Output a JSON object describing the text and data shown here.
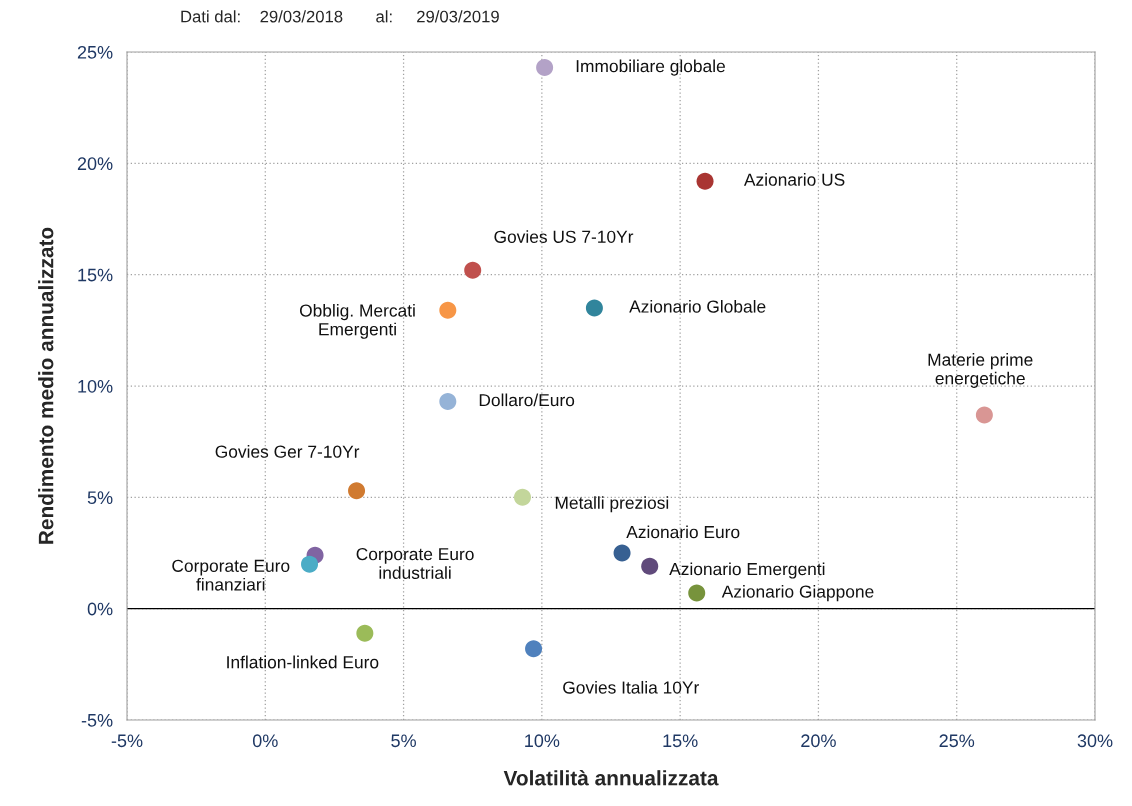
{
  "chart_data": {
    "type": "scatter",
    "xlabel": "Volatilità annualizzata",
    "ylabel": "Rendimento medio annualizzato",
    "annotations": [
      "Dati dal:    29/03/2018       al:     29/03/2019"
    ],
    "xlim": [
      -5,
      30
    ],
    "ylim": [
      -5,
      25
    ],
    "xticks": [
      {
        "value": -5,
        "label": "-5%"
      },
      {
        "value": 0,
        "label": "0%"
      },
      {
        "value": 5,
        "label": "5%"
      },
      {
        "value": 10,
        "label": "10%"
      },
      {
        "value": 15,
        "label": "15%"
      },
      {
        "value": 20,
        "label": "20%"
      },
      {
        "value": 25,
        "label": "25%"
      },
      {
        "value": 30,
        "label": "30%"
      }
    ],
    "yticks": [
      {
        "value": -5,
        "label": "-5%"
      },
      {
        "value": 0,
        "label": "0%"
      },
      {
        "value": 5,
        "label": "5%"
      },
      {
        "value": 10,
        "label": "10%"
      },
      {
        "value": 15,
        "label": "15%"
      },
      {
        "value": 20,
        "label": "20%"
      },
      {
        "value": 25,
        "label": "25%"
      }
    ],
    "grid": true,
    "marker": "circle",
    "ref_lines": [
      {
        "axis": "y",
        "value": 0,
        "color": "#000000"
      }
    ],
    "series": [
      {
        "name": "Immobiliare globale",
        "color": "#b3a2c7",
        "x": [
          10.1
        ],
        "values": [
          24.3
        ]
      },
      {
        "name": "Azionario US",
        "color": "#a93532",
        "x": [
          15.9
        ],
        "values": [
          19.2
        ]
      },
      {
        "name": "Govies US 7-10Yr",
        "color": "#c0504d",
        "x": [
          7.5
        ],
        "values": [
          15.2
        ]
      },
      {
        "name": "Obblig. Mercati\nEmergenti",
        "color": "#f79646",
        "x": [
          6.6
        ],
        "values": [
          13.4
        ]
      },
      {
        "name": "Azionario Globale",
        "color": "#31859c",
        "x": [
          11.9
        ],
        "values": [
          13.5
        ]
      },
      {
        "name": "Materie prime\nenergetiche",
        "color": "#d99694",
        "x": [
          26.0
        ],
        "values": [
          8.7
        ]
      },
      {
        "name": "Dollaro/Euro",
        "color": "#95b3d7",
        "x": [
          6.6
        ],
        "values": [
          9.3
        ]
      },
      {
        "name": "Govies Ger 7-10Yr",
        "color": "#d07a30",
        "x": [
          3.3
        ],
        "values": [
          5.3
        ]
      },
      {
        "name": "Metalli preziosi",
        "color": "#c3d69b",
        "x": [
          9.3
        ],
        "values": [
          5.0
        ]
      },
      {
        "name": "Azionario Euro",
        "color": "#376092",
        "x": [
          12.9
        ],
        "values": [
          2.5
        ]
      },
      {
        "name": "Azionario Emergenti",
        "color": "#604a7b",
        "x": [
          13.9
        ],
        "values": [
          1.9
        ]
      },
      {
        "name": "Azionario Giappone",
        "color": "#77933c",
        "x": [
          15.6
        ],
        "values": [
          0.7
        ]
      },
      {
        "name": "Corporate Euro\nindustriali",
        "color": "#8064a2",
        "x": [
          1.8
        ],
        "values": [
          2.4
        ]
      },
      {
        "name": "Corporate Euro\nfinanziari",
        "color": "#4bacc6",
        "x": [
          1.6
        ],
        "values": [
          2.0
        ]
      },
      {
        "name": "Inflation-linked Euro",
        "color": "#9bbb59",
        "x": [
          3.6
        ],
        "values": [
          -1.1
        ]
      },
      {
        "name": "Govies Italia 10Yr",
        "color": "#4f81bd",
        "x": [
          9.7
        ],
        "values": [
          -1.8
        ]
      }
    ]
  }
}
